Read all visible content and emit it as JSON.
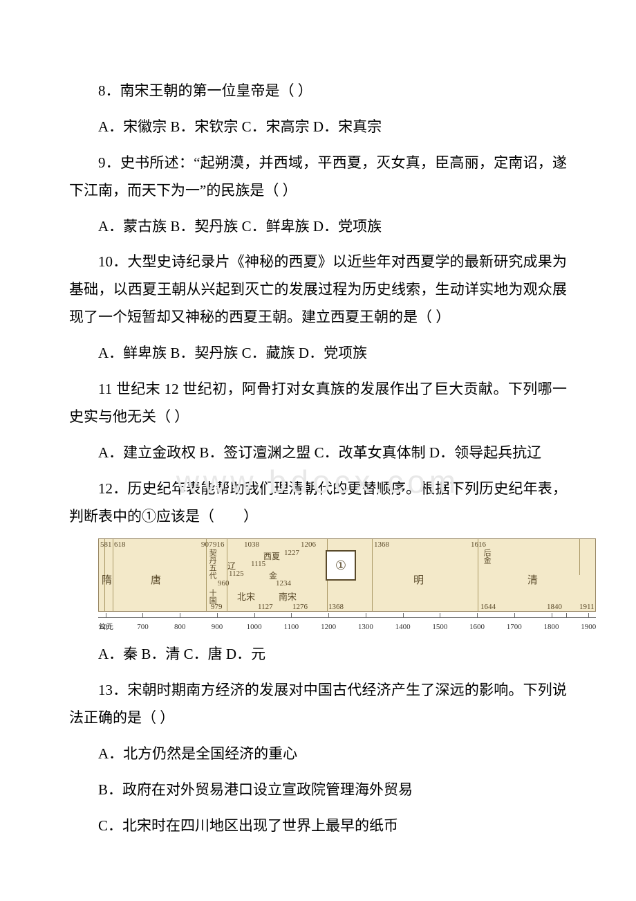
{
  "watermark": "www.bdocx.com",
  "questions": {
    "q8": {
      "stem": "8．南宋王朝的第一位皇帝是（ ）",
      "opts": "A．宋徽宗 B．宋钦宗 C．宋高宗 D．宋真宗"
    },
    "q9": {
      "stem": "9．史书所述：“起朔漠，并西域，平西夏，灭女真，臣高丽，定南诏，遂下江南，而天下为一”的民族是（ ）",
      "opts": "A．蒙古族 B．契丹族 C．鲜卑族 D．党项族"
    },
    "q10": {
      "stem": "10．大型史诗纪录片《神秘的西夏》以近些年对西夏学的最新研究成果为基础，以西夏王朝从兴起到灭亡的发展过程为历史线索，生动详实地为观众展现了一个短暂却又神秘的西夏王朝。建立西夏王朝的是（ ）",
      "opts": "A．鲜卑族 B．契丹族 C．藏族 D．党项族"
    },
    "q11": {
      "stem": "11 世纪末 12 世纪初，阿骨打对女真族的发展作出了巨大贡献。下列哪一史实与他无关（ ）",
      "opts": "A．建立金政权 B．签订澶渊之盟 C．改革女真体制 D．领导起兵抗辽"
    },
    "q12": {
      "stem": "12．历史纪年表能帮助我们理清朝代的更替顺序。根据下列历史纪年表，判断表中的①应该是（　　）",
      "opts": "A．秦 B．清 C．唐 D．元"
    },
    "q13": {
      "stem": "13．宋朝时期南方经济的发展对中国古代经济产生了深远的影响。下列说法正确的是（ ）",
      "optA": "A．北方仍然是全国经济的重心",
      "optB": "B．政府在对外贸易港口设立宣政院管理海外贸易",
      "optC": "C．北宋时在四川地区出现了世界上最早的纸币"
    }
  },
  "timeline": {
    "background_color": "#f3e9c9",
    "border_color": "#998866",
    "text_color": "#5a4a2a",
    "circle_label": "①",
    "dynasties": {
      "sui": "隋",
      "tang": "唐",
      "wudai": "五代",
      "shiguo": "十国",
      "qidan": "契丹",
      "liao": "辽",
      "beisong": "北宋",
      "xixia": "西夏",
      "jin": "金",
      "nansong": "南宋",
      "ming": "明",
      "houjin": "后金",
      "qing": "清"
    },
    "years": {
      "y581": "581",
      "y618": "618",
      "y907": "907",
      "y916": "916",
      "y960": "960",
      "y979": "979",
      "y1038": "1038",
      "y1115": "1115",
      "y1125": "1125",
      "y1127": "1127",
      "y1206": "1206",
      "y1227": "1227",
      "y1234": "1234",
      "y1276": "1276",
      "y1368": "1368",
      "y1368b": "1368",
      "y1616": "1616",
      "y1644": "1644",
      "y1840": "1840",
      "y1911": "1911"
    },
    "axis": {
      "prefix": "公元",
      "ticks": [
        600,
        700,
        800,
        900,
        1000,
        1100,
        1200,
        1300,
        1400,
        1500,
        1600,
        1700,
        1800,
        1900
      ],
      "extra_dash": 1840
    }
  }
}
